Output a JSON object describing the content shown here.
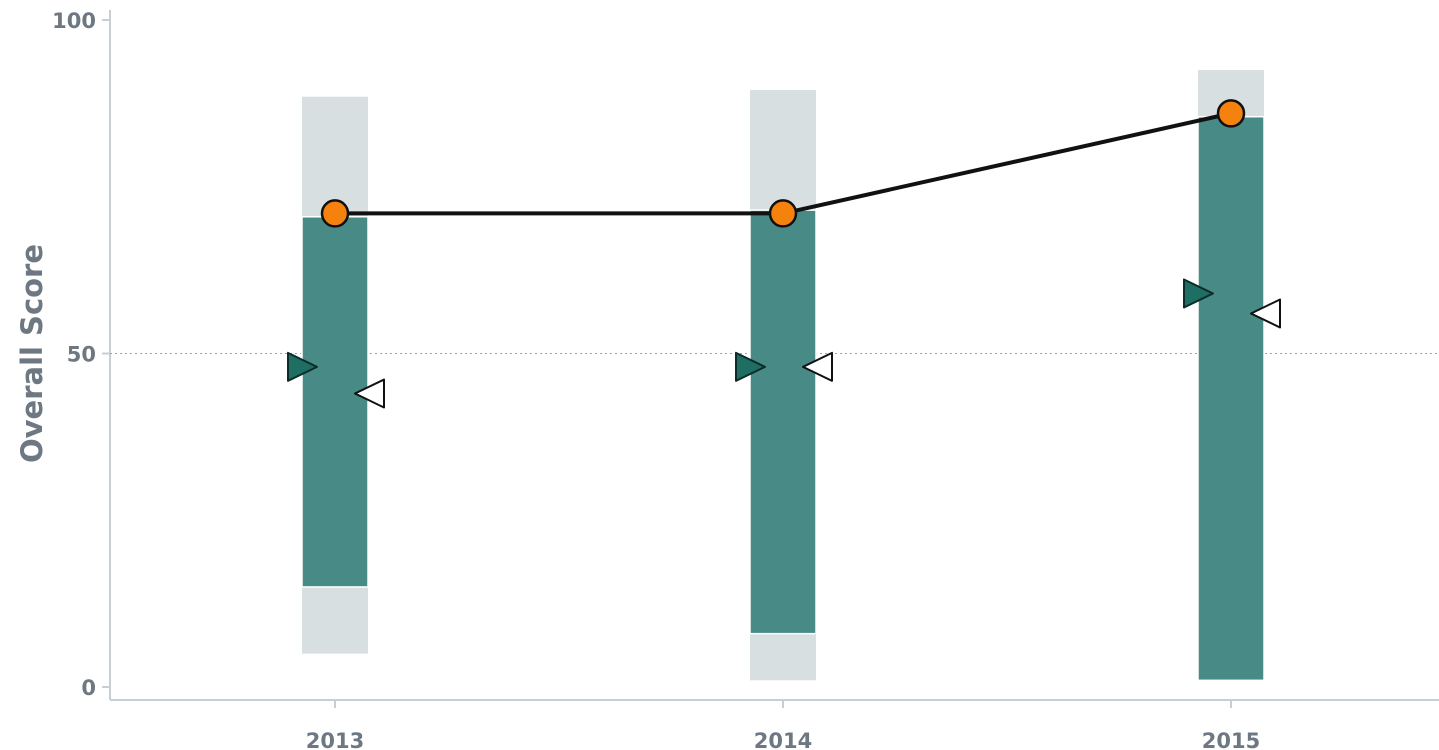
{
  "chart_data": {
    "type": "bar",
    "title": "",
    "xlabel": "",
    "ylabel": "Overall Score",
    "ylim": [
      0,
      100
    ],
    "yticks": [
      0,
      50,
      100
    ],
    "reference_line": 50,
    "grid": false,
    "categories": [
      "2013",
      "2014",
      "2015"
    ],
    "full_range": [
      {
        "low": 5,
        "high": 88.5
      },
      {
        "low": 1,
        "high": 89.5
      },
      {
        "low": 1,
        "high": 92.5
      }
    ],
    "middle_range": [
      {
        "low": 15,
        "high": 70.5
      },
      {
        "low": 8,
        "high": 71.5
      },
      {
        "low": 1,
        "high": 85.5
      }
    ],
    "score_line": [
      71,
      71,
      86
    ],
    "filled_markers": [
      48,
      48,
      59
    ],
    "open_markers": [
      44,
      48,
      56
    ],
    "colors": {
      "range_bar": "#d7dfe1",
      "middle_bar": "#478a86",
      "score_point": "#f5820d",
      "score_line": "#111111",
      "filled_marker": "#1f6e64",
      "open_marker": "#ffffff",
      "axis_text": "#6e7882",
      "axis_line": "#c8cfd4"
    }
  }
}
